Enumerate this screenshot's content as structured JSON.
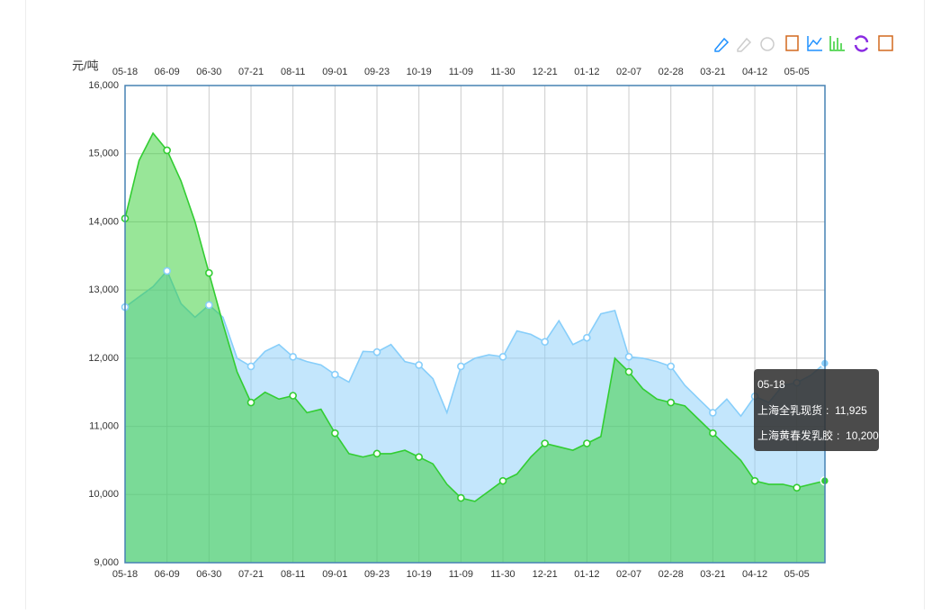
{
  "chart_data": {
    "type": "area",
    "y_axis_label": "元/吨",
    "categories": [
      "05-18",
      null,
      null,
      "06-09",
      null,
      null,
      "06-30",
      null,
      null,
      "07-21",
      null,
      null,
      "08-11",
      null,
      null,
      "09-01",
      null,
      null,
      "09-23",
      null,
      null,
      "10-19",
      null,
      null,
      "11-09",
      null,
      null,
      "11-30",
      null,
      null,
      "12-21",
      null,
      null,
      "01-12",
      null,
      null,
      "02-07",
      null,
      null,
      "02-28",
      null,
      null,
      "03-21",
      null,
      null,
      "04-12",
      null,
      null,
      "05-05",
      null,
      "05-18"
    ],
    "series": [
      {
        "name": "上海全乳现货",
        "color": "#87cefa",
        "values": [
          12750,
          12900,
          13050,
          13280,
          12800,
          12600,
          12780,
          12600,
          12000,
          11880,
          12100,
          12200,
          12020,
          11950,
          11900,
          11760,
          11650,
          12100,
          12090,
          12200,
          11950,
          11900,
          11700,
          11200,
          11880,
          12000,
          12050,
          12020,
          12400,
          12350,
          12240,
          12550,
          12200,
          12300,
          12650,
          12700,
          12020,
          12000,
          11950,
          11880,
          11600,
          11400,
          11200,
          11400,
          11150,
          11440,
          11350,
          11600,
          11640,
          11750,
          11925
        ],
        "value_labels": [
          null,
          null,
          null,
          null,
          null,
          null,
          null,
          null,
          null,
          null,
          null,
          null,
          null,
          null,
          null,
          null,
          null,
          null,
          null,
          null,
          null,
          null,
          null,
          null,
          null,
          null,
          null,
          null,
          null,
          null,
          null,
          null,
          null,
          null,
          null,
          null,
          null,
          null,
          null,
          null,
          null,
          null,
          null,
          null,
          null,
          null,
          null,
          null,
          null,
          null,
          "11,925"
        ]
      },
      {
        "name": "上海黄春发乳胶",
        "color": "#32cd32",
        "values": [
          14050,
          14900,
          15300,
          15050,
          14600,
          14000,
          13250,
          12500,
          11800,
          11350,
          11500,
          11400,
          11450,
          11200,
          11250,
          10900,
          10600,
          10550,
          10600,
          10600,
          10650,
          10550,
          10450,
          10150,
          9950,
          9900,
          10050,
          10200,
          10300,
          10550,
          10750,
          10700,
          10650,
          10750,
          10850,
          12000,
          11800,
          11550,
          11400,
          11350,
          11300,
          11100,
          10900,
          10700,
          10500,
          10200,
          10150,
          10150,
          10100,
          10150,
          10200
        ],
        "value_labels": [
          null,
          null,
          null,
          null,
          null,
          null,
          null,
          null,
          null,
          null,
          null,
          null,
          null,
          null,
          null,
          null,
          null,
          null,
          null,
          null,
          null,
          null,
          null,
          null,
          null,
          null,
          null,
          null,
          null,
          null,
          null,
          null,
          null,
          null,
          null,
          null,
          null,
          null,
          null,
          null,
          null,
          null,
          null,
          null,
          null,
          null,
          null,
          null,
          null,
          null,
          "10,200"
        ]
      }
    ],
    "ylim": [
      9000,
      16000
    ],
    "yticks": [
      {
        "value": 9000,
        "label": "9,000"
      },
      {
        "value": 10000,
        "label": "10,000"
      },
      {
        "value": 11000,
        "label": "11,000"
      },
      {
        "value": 12000,
        "label": "12,000"
      },
      {
        "value": 13000,
        "label": "13,000"
      },
      {
        "value": 14000,
        "label": "14,000"
      },
      {
        "value": 15000,
        "label": "15,000"
      },
      {
        "value": 16000,
        "label": "16,000"
      }
    ],
    "grid": true
  }
}
